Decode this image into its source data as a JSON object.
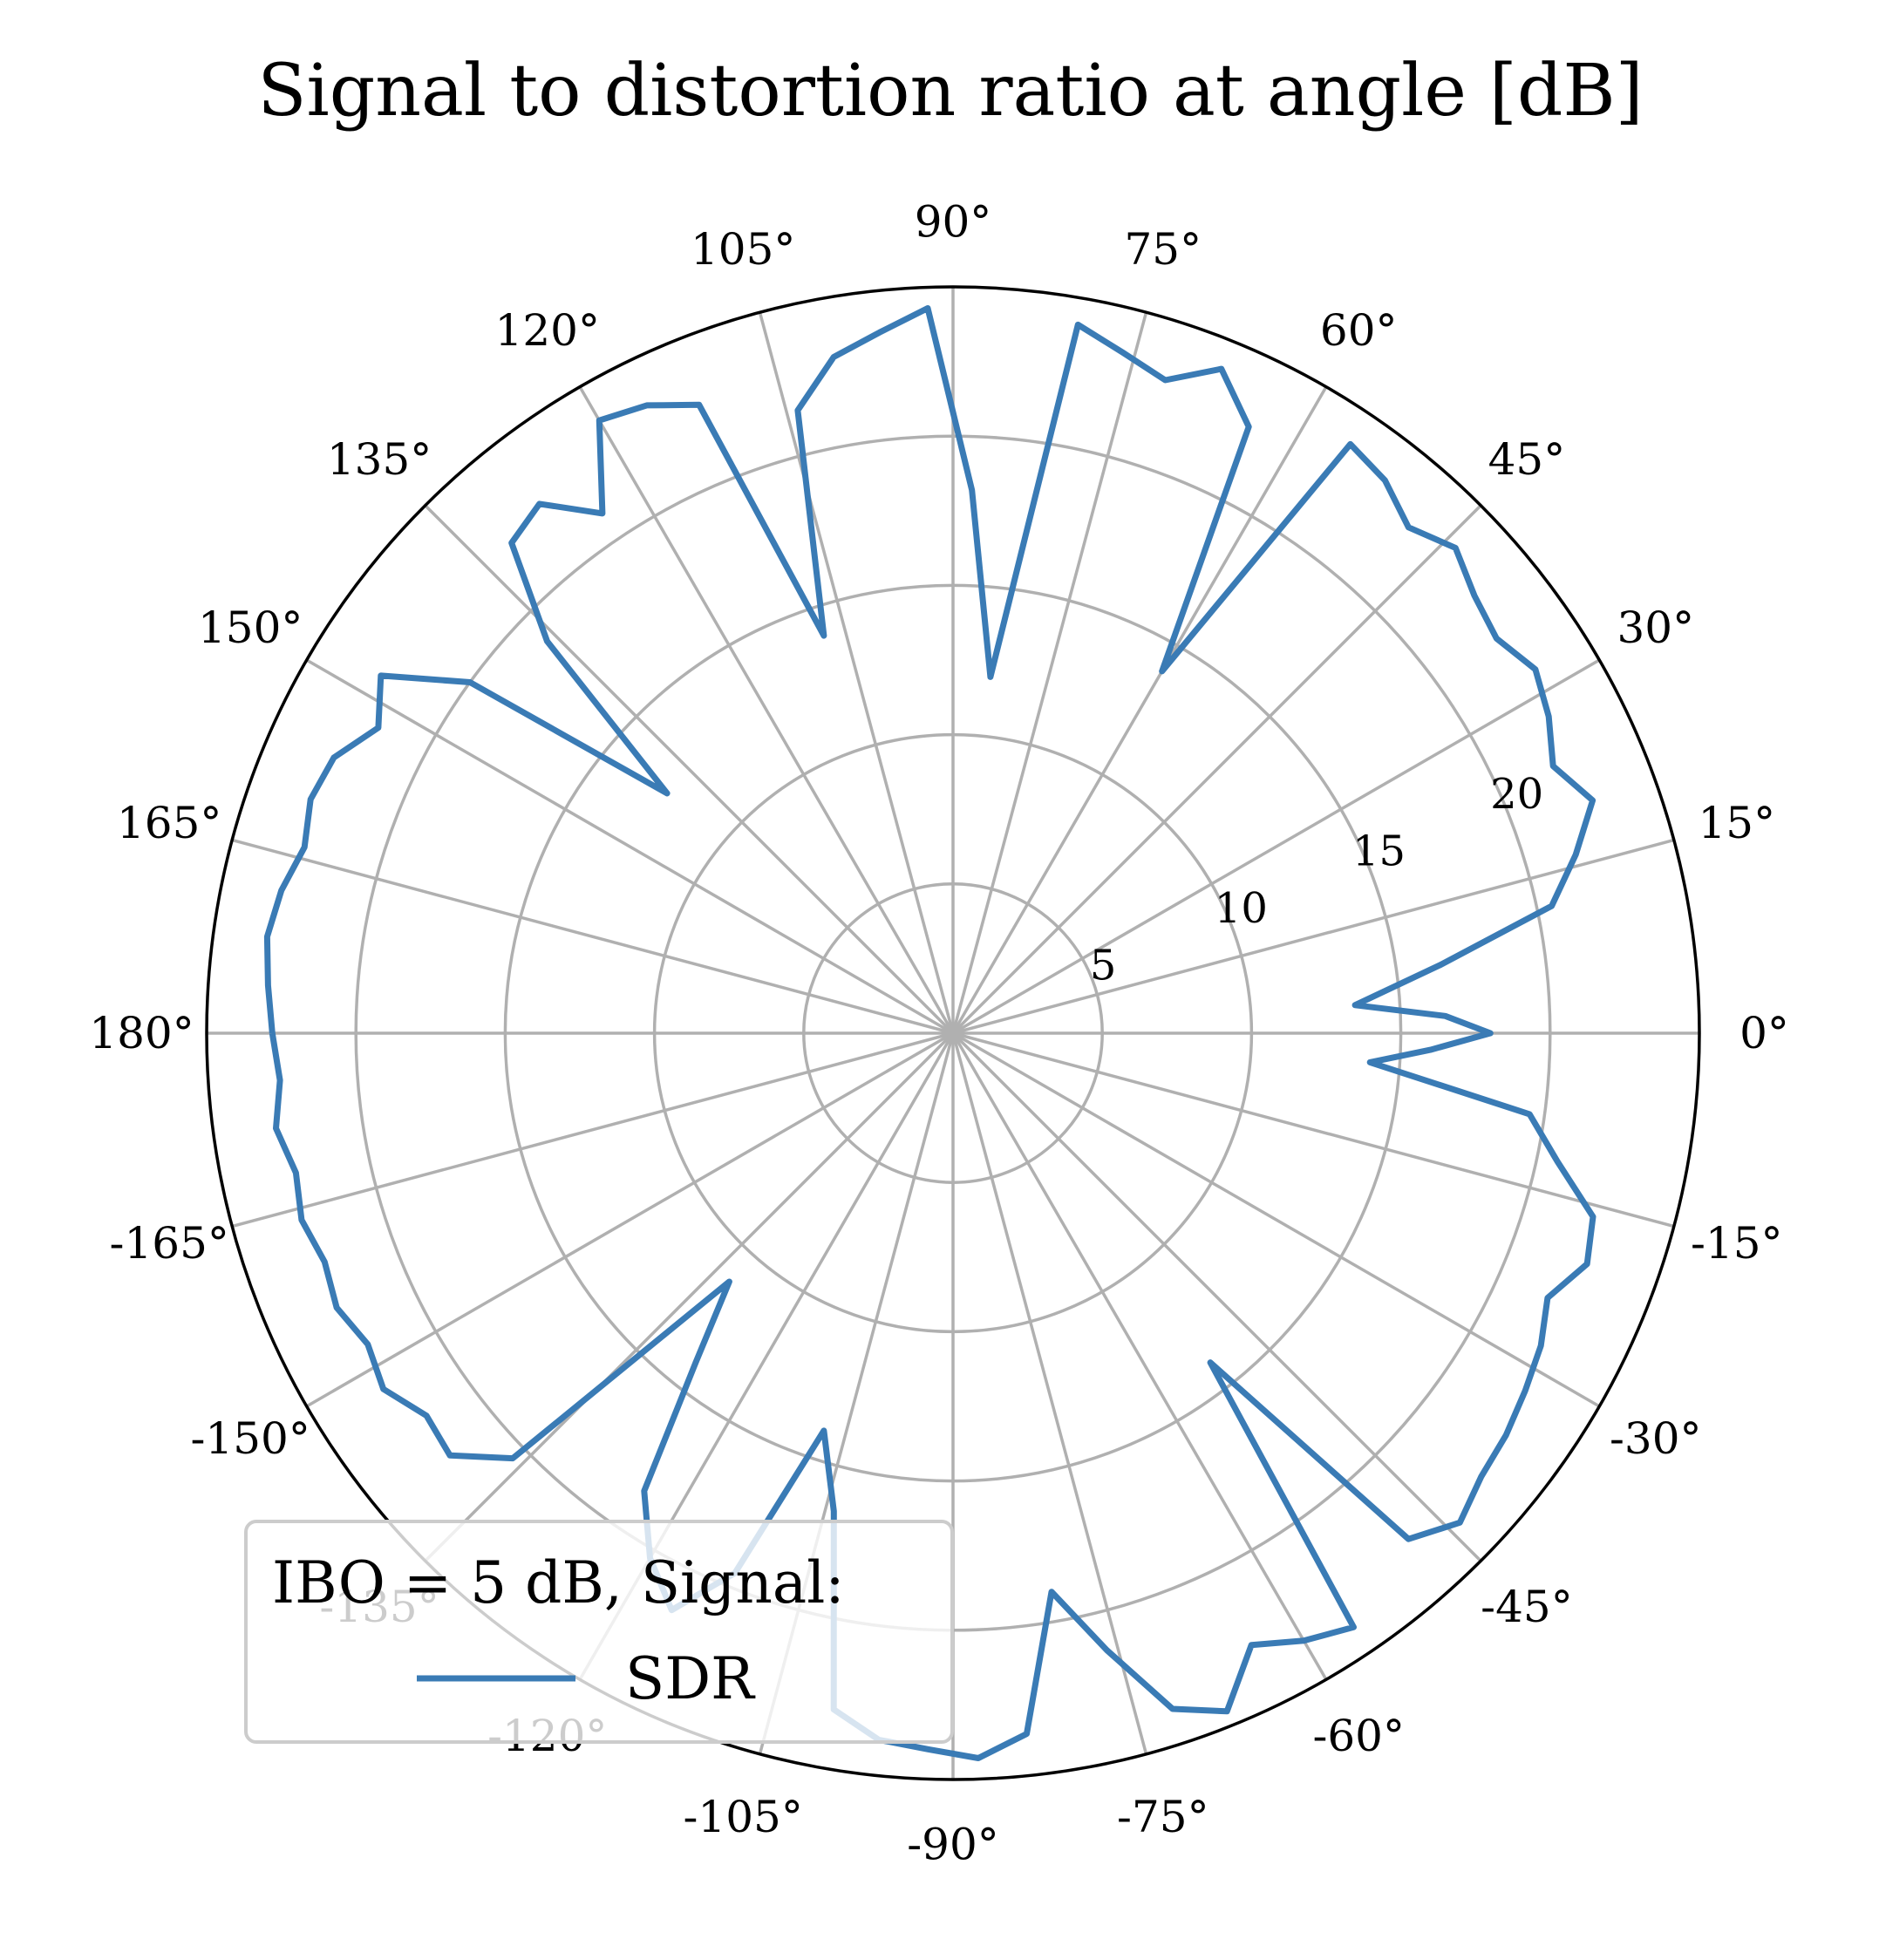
{
  "chart_data": {
    "type": "polar-line",
    "title": "Signal to distortion ratio at angle [dB]",
    "theta_unit": "degrees",
    "theta_range": [
      -180,
      180
    ],
    "r_range": [
      0,
      25
    ],
    "r_ticks": [
      5,
      10,
      15,
      20
    ],
    "r_tick_labels": [
      "5",
      "10",
      "15",
      "20"
    ],
    "theta_ticks": [
      0,
      15,
      30,
      45,
      60,
      75,
      90,
      105,
      120,
      135,
      150,
      165,
      180,
      -165,
      -150,
      -135,
      -120,
      -105,
      -90,
      -75,
      -60,
      -45,
      -30,
      -15
    ],
    "theta_tick_labels": [
      "0°",
      "15°",
      "30°",
      "45°",
      "60°",
      "75°",
      "90°",
      "105°",
      "120°",
      "135°",
      "150°",
      "165°",
      "180°",
      "-165°",
      "-150°",
      "-135°",
      "-120°",
      "-105°",
      "-90°",
      "-75°",
      "-60°",
      "-45°",
      "-30°",
      "-15°"
    ],
    "grid": true,
    "legend": {
      "placement": "lower-left",
      "title": "IBO = 5 dB, Signal:",
      "entries": [
        "SDR"
      ]
    },
    "series": [
      {
        "name": "SDR",
        "color": "#3a7bb5",
        "theta": [
          -180,
          -176,
          -172,
          -168,
          -164,
          -160,
          -156,
          -152,
          -148,
          -144,
          -140,
          -136,
          -132,
          -128,
          -124,
          -120,
          -116,
          -112,
          -108,
          -104,
          -100,
          -96,
          -92,
          -88,
          -84,
          -80,
          -76,
          -72,
          -68,
          -64,
          -60,
          -56,
          -52,
          -48,
          -44,
          -40,
          -36,
          -32,
          -28,
          -24,
          -20,
          -16,
          -12,
          -8,
          -4,
          -2,
          0,
          2,
          4,
          8,
          12,
          16,
          20,
          24,
          28,
          32,
          36,
          40,
          44,
          48,
          52,
          56,
          60,
          64,
          68,
          72,
          76,
          80,
          84,
          88,
          92,
          96,
          100,
          104,
          108,
          112,
          116,
          120,
          124,
          128,
          132,
          136,
          140,
          144,
          148,
          152,
          156,
          160,
          164,
          168,
          172,
          176,
          180
        ],
        "r": [
          22.8,
          22.6,
          22.9,
          22.5,
          22.7,
          22.4,
          22.6,
          22.2,
          22.5,
          21.8,
          22.0,
          20.5,
          11.2,
          14.0,
          18.5,
          20.3,
          21.5,
          19.5,
          14.0,
          16.5,
          23.0,
          23.8,
          24.0,
          24.3,
          23.6,
          19.0,
          21.3,
          23.8,
          24.5,
          22.8,
          23.5,
          24.0,
          14.0,
          22.8,
          23.6,
          23.1,
          22.9,
          22.6,
          22.3,
          21.8,
          22.6,
          22.3,
          20.7,
          19.5,
          14.0,
          16.0,
          18.0,
          16.5,
          13.5,
          16.5,
          20.5,
          21.7,
          22.8,
          22.0,
          22.6,
          23.0,
          22.5,
          22.8,
          23.4,
          22.8,
          23.5,
          23.8,
          14.0,
          22.6,
          24.0,
          23.0,
          23.5,
          24.1,
          12.0,
          18.2,
          24.3,
          23.6,
          23.0,
          21.5,
          14.0,
          22.7,
          23.4,
          23.7,
          21.0,
          22.5,
          22.1,
          18.9,
          12.5,
          20.0,
          22.6,
          21.8,
          22.7,
          22.9,
          22.6,
          23.0,
          23.2,
          23.0,
          22.8
        ]
      }
    ]
  }
}
